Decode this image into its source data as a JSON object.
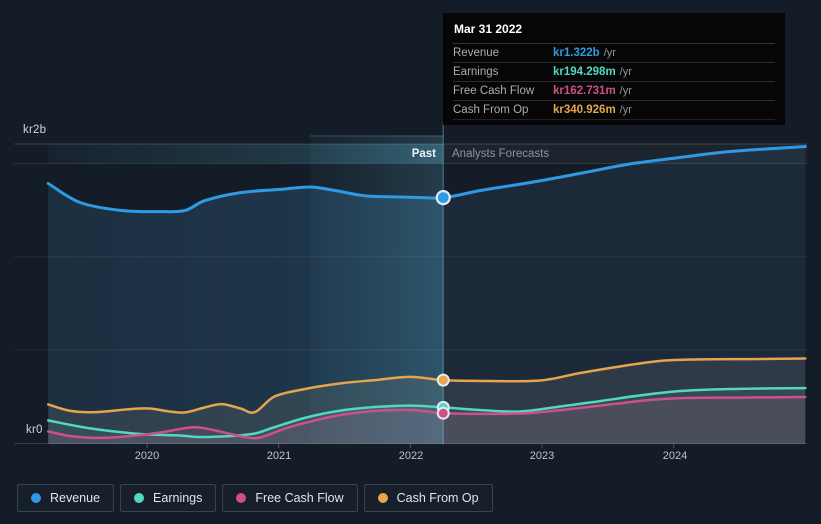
{
  "y_axis": {
    "top": "kr2b",
    "bottom": "kr0"
  },
  "x_ticks": [
    "2020",
    "2021",
    "2022",
    "2023",
    "2024"
  ],
  "period_labels": {
    "past": "Past",
    "forecast": "Analysts Forecasts"
  },
  "tooltip": {
    "date": "Mar 31 2022",
    "rows": [
      {
        "label": "Revenue",
        "value": "kr1.322b",
        "suffix": "/yr"
      },
      {
        "label": "Earnings",
        "value": "kr194.298m",
        "suffix": "/yr"
      },
      {
        "label": "Free Cash Flow",
        "value": "kr162.731m",
        "suffix": "/yr"
      },
      {
        "label": "Cash From Op",
        "value": "kr340.926m",
        "suffix": "/yr"
      }
    ]
  },
  "legend": {
    "items": [
      {
        "label": "Revenue"
      },
      {
        "label": "Earnings"
      },
      {
        "label": "Free Cash Flow"
      },
      {
        "label": "Cash From Op"
      }
    ]
  },
  "chart_data": {
    "type": "area",
    "unit": "SEK (kr), billions",
    "x_range": [
      2019.25,
      2025.0
    ],
    "ylim_b": [
      0,
      2
    ],
    "grid": true,
    "past_forecast_split_x": 2022.25,
    "marker_date": "Mar 31 2022",
    "series": [
      {
        "name": "Revenue",
        "color": "#2e9ae4",
        "marker_value_b": 1.322,
        "points": [
          [
            2019.25,
            1.398
          ],
          [
            2019.49,
            1.296
          ],
          [
            2019.8,
            1.253
          ],
          [
            2020.1,
            1.247
          ],
          [
            2020.29,
            1.253
          ],
          [
            2020.44,
            1.306
          ],
          [
            2020.71,
            1.349
          ],
          [
            2021.01,
            1.366
          ],
          [
            2021.24,
            1.379
          ],
          [
            2021.43,
            1.36
          ],
          [
            2021.66,
            1.331
          ],
          [
            2021.96,
            1.325
          ],
          [
            2022.25,
            1.322
          ],
          [
            2022.53,
            1.36
          ],
          [
            2022.91,
            1.403
          ],
          [
            2023.29,
            1.452
          ],
          [
            2023.67,
            1.503
          ],
          [
            2024.05,
            1.538
          ],
          [
            2024.43,
            1.57
          ],
          [
            2025.0,
            1.597
          ]
        ]
      },
      {
        "name": "Earnings",
        "color": "#53d6c2",
        "marker_value_b": 0.194298,
        "points": [
          [
            2019.25,
            0.124
          ],
          [
            2019.57,
            0.081
          ],
          [
            2019.95,
            0.051
          ],
          [
            2020.25,
            0.043
          ],
          [
            2020.4,
            0.035
          ],
          [
            2020.63,
            0.04
          ],
          [
            2020.82,
            0.054
          ],
          [
            2020.96,
            0.086
          ],
          [
            2021.21,
            0.14
          ],
          [
            2021.47,
            0.177
          ],
          [
            2021.73,
            0.196
          ],
          [
            2022.0,
            0.204
          ],
          [
            2022.25,
            0.194298
          ],
          [
            2022.53,
            0.18
          ],
          [
            2022.83,
            0.172
          ],
          [
            2023.14,
            0.199
          ],
          [
            2023.44,
            0.228
          ],
          [
            2023.74,
            0.258
          ],
          [
            2024.05,
            0.282
          ],
          [
            2024.43,
            0.293
          ],
          [
            2025.0,
            0.298
          ]
        ]
      },
      {
        "name": "Free Cash Flow",
        "color": "#cf5088",
        "marker_value_b": 0.162731,
        "points": [
          [
            2019.25,
            0.065
          ],
          [
            2019.42,
            0.04
          ],
          [
            2019.64,
            0.03
          ],
          [
            2019.87,
            0.04
          ],
          [
            2020.1,
            0.059
          ],
          [
            2020.29,
            0.083
          ],
          [
            2020.4,
            0.086
          ],
          [
            2020.55,
            0.065
          ],
          [
            2020.74,
            0.035
          ],
          [
            2020.86,
            0.032
          ],
          [
            2021.05,
            0.081
          ],
          [
            2021.24,
            0.118
          ],
          [
            2021.47,
            0.153
          ],
          [
            2021.73,
            0.175
          ],
          [
            2022.0,
            0.18
          ],
          [
            2022.13,
            0.172
          ],
          [
            2022.25,
            0.162731
          ],
          [
            2022.61,
            0.159
          ],
          [
            2022.91,
            0.164
          ],
          [
            2023.21,
            0.185
          ],
          [
            2023.52,
            0.21
          ],
          [
            2023.82,
            0.234
          ],
          [
            2024.12,
            0.245
          ],
          [
            2024.5,
            0.247
          ],
          [
            2025.0,
            0.25
          ]
        ]
      },
      {
        "name": "Cash From Op",
        "color": "#e5a44e",
        "marker_value_b": 0.340926,
        "points": [
          [
            2019.25,
            0.21
          ],
          [
            2019.42,
            0.175
          ],
          [
            2019.61,
            0.169
          ],
          [
            2019.87,
            0.185
          ],
          [
            2020.02,
            0.188
          ],
          [
            2020.17,
            0.172
          ],
          [
            2020.29,
            0.167
          ],
          [
            2020.44,
            0.194
          ],
          [
            2020.57,
            0.212
          ],
          [
            2020.71,
            0.188
          ],
          [
            2020.82,
            0.169
          ],
          [
            2020.97,
            0.253
          ],
          [
            2021.2,
            0.293
          ],
          [
            2021.47,
            0.323
          ],
          [
            2021.73,
            0.341
          ],
          [
            2022.0,
            0.358
          ],
          [
            2022.25,
            0.340926
          ],
          [
            2022.61,
            0.336
          ],
          [
            2022.99,
            0.339
          ],
          [
            2023.29,
            0.379
          ],
          [
            2023.59,
            0.414
          ],
          [
            2023.9,
            0.444
          ],
          [
            2024.2,
            0.452
          ],
          [
            2024.58,
            0.454
          ],
          [
            2025.0,
            0.457
          ]
        ]
      }
    ]
  }
}
